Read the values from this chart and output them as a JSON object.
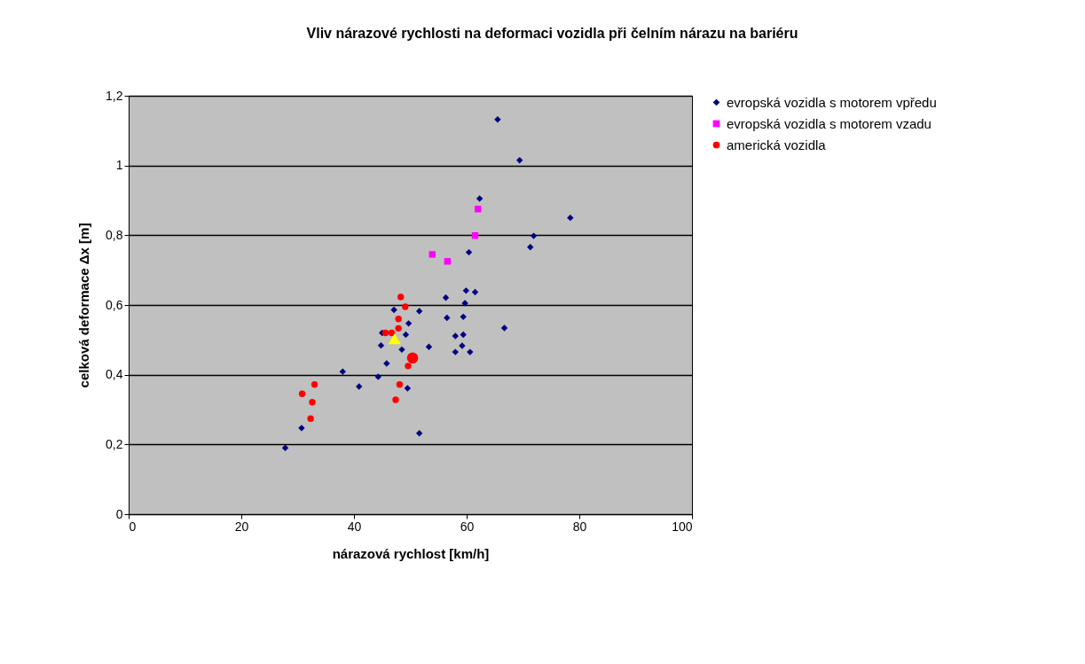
{
  "chart_data": {
    "type": "scatter",
    "title": "Vliv nárazové rychlosti na deformaci vozidla při čelním nárazu na bariéru",
    "xlabel": "nárazová rychlost [km/h]",
    "ylabel": "celková deformace Δx [m]",
    "xlim": [
      0,
      100
    ],
    "xticks": [
      0,
      20,
      40,
      60,
      80,
      100
    ],
    "ylim": [
      0,
      1.2
    ],
    "yticks": [
      0,
      {
        "value": 0.2,
        "label": "0,2"
      },
      {
        "value": 0.4,
        "label": "0,4"
      },
      {
        "value": 0.6,
        "label": "0,6"
      },
      {
        "value": 0.8,
        "label": "0,8"
      },
      1,
      {
        "value": 1.2,
        "label": "1,2"
      }
    ],
    "grid": "y",
    "legend": "right",
    "series": [
      {
        "name": "evropská vozidla s motorem vpředu",
        "color": "#000080",
        "marker": "diamond",
        "x": [
          47.1,
          51.6,
          49.7,
          45.0,
          49.2,
          44.8,
          48.5,
          53.3,
          45.8,
          38.0,
          44.3,
          40.9,
          49.5,
          30.7,
          51.6,
          27.8,
          56.3,
          59.9,
          61.5,
          59.7,
          56.5,
          59.4,
          58.0,
          59.4,
          59.2,
          58.0,
          60.6,
          65.5,
          69.4,
          62.3,
          78.4,
          71.9,
          71.3,
          60.4,
          66.7
        ],
        "values": [
          0.586,
          0.582,
          0.547,
          0.52,
          0.515,
          0.484,
          0.472,
          0.48,
          0.432,
          0.409,
          0.394,
          0.366,
          0.361,
          0.247,
          0.232,
          0.19,
          0.621,
          0.641,
          0.637,
          0.605,
          0.563,
          0.566,
          0.511,
          0.515,
          0.483,
          0.465,
          0.465,
          1.132,
          1.015,
          0.905,
          0.85,
          0.798,
          0.766,
          0.751,
          0.534
        ]
      },
      {
        "name": "evropská vozidla s motorem vzadu",
        "color": "#ff00ff",
        "marker": "square",
        "x": [
          62.0,
          61.5,
          56.6,
          53.9
        ],
        "values": [
          0.875,
          0.799,
          0.725,
          0.745
        ]
      },
      {
        "name": "americká vozidla",
        "color": "#ff0000",
        "marker": "circle",
        "x": [
          48.3,
          49.1,
          47.9,
          47.9,
          45.6,
          46.7,
          49.6,
          33.0,
          48.1,
          30.8,
          32.6,
          47.4,
          32.3
        ],
        "values": [
          0.623,
          0.595,
          0.56,
          0.533,
          0.52,
          0.52,
          0.425,
          0.372,
          0.372,
          0.345,
          0.321,
          0.328,
          0.274
        ]
      },
      {
        "color": "#ff0000",
        "marker": "circle",
        "x": [
          50.4
        ],
        "values": [
          0.448
        ]
      },
      {
        "color": "#ffff00",
        "marker": "triangle",
        "x": [
          47.2
        ],
        "values": [
          0.503
        ]
      }
    ]
  }
}
